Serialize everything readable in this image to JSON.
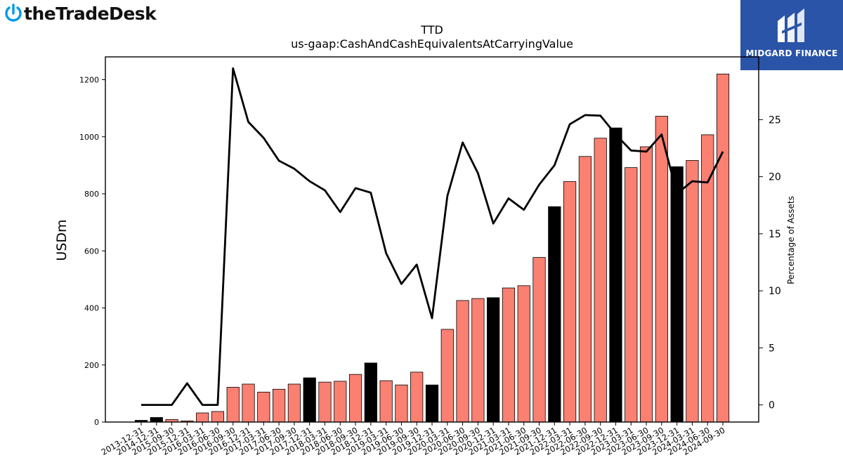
{
  "brand_left": {
    "name": "theTradeDesk",
    "logo_icon": "power-icon",
    "color": "#0099e5"
  },
  "brand_right": {
    "name": "MIDGARD FINANCE",
    "logo_icon": "midgard-m-icon",
    "color": "#2a54a8"
  },
  "chart_data": {
    "type": "bar",
    "title": "TTD",
    "subtitle": "us-gaap:CashAndCashEquivalentsAtCarryingValue",
    "ylabel": "USDm",
    "y2label": "Percentage of Assets",
    "ylim": [
      0,
      1280
    ],
    "y2lim": [
      -1.5,
      30.5
    ],
    "yticks": [
      0,
      200,
      400,
      600,
      800,
      1000,
      1200
    ],
    "y2ticks": [
      0,
      5,
      10,
      15,
      20,
      25
    ],
    "categories": [
      "2013-12-31",
      "2014-12-31",
      "2015-09-30",
      "2015-12-31",
      "2016-03-31",
      "2016-06-30",
      "2016-09-30",
      "2016-12-31",
      "2017-03-31",
      "2017-06-30",
      "2017-09-30",
      "2017-12-31",
      "2018-03-31",
      "2018-06-30",
      "2018-09-30",
      "2018-12-31",
      "2019-03-31",
      "2019-06-30",
      "2019-09-30",
      "2019-12-31",
      "2020-03-31",
      "2020-06-30",
      "2020-09-30",
      "2020-12-31",
      "2021-03-31",
      "2021-06-30",
      "2021-09-30",
      "2021-12-31",
      "2022-03-31",
      "2022-06-30",
      "2022-09-30",
      "2022-12-31",
      "2023-03-31",
      "2023-06-30",
      "2023-09-30",
      "2023-12-31",
      "2024-03-31",
      "2024-06-30",
      "2024-09-30"
    ],
    "series": [
      {
        "type": "bar",
        "values": [
          6,
          16,
          9,
          4,
          32,
          37,
          122,
          133,
          105,
          115,
          133,
          155,
          140,
          143,
          167,
          207,
          145,
          130,
          175,
          130,
          325,
          426,
          433,
          436,
          470,
          478,
          577,
          755,
          843,
          931,
          995,
          1031,
          892,
          965,
          1072,
          895,
          917,
          1007,
          1220
        ],
        "highlight_color": "#000000",
        "default_color": "#fa8072",
        "highlight_indices": [
          0,
          1,
          11,
          15,
          19,
          23,
          27,
          31,
          35
        ]
      },
      {
        "type": "line",
        "axis": "right",
        "color": "#000000",
        "values": [
          0,
          0,
          0,
          1.9,
          0,
          0,
          29.5,
          24.8,
          23.4,
          21.4,
          20.7,
          19.6,
          18.8,
          16.9,
          19.0,
          18.6,
          13.3,
          10.6,
          12.3,
          7.6,
          18.3,
          23.0,
          20.3,
          15.9,
          18.1,
          17.1,
          19.3,
          21.0,
          24.6,
          25.4,
          25.35,
          23.7,
          22.3,
          22.2,
          23.7,
          18.5,
          19.6,
          19.5,
          22.2
        ]
      }
    ]
  }
}
